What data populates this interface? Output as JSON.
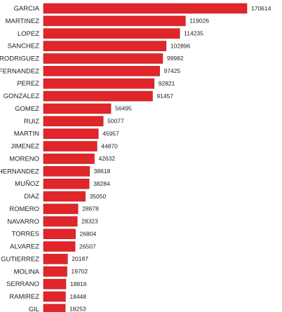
{
  "chart_data": {
    "type": "bar",
    "orientation": "horizontal",
    "title": "",
    "xlabel": "",
    "ylabel": "",
    "grid": false,
    "legend": "none",
    "bar_color": "#e0262a",
    "bar_stroke_color": "#b51b1f",
    "xlim": [
      0,
      170614
    ],
    "categories": [
      "GARCIA",
      "MARTINEZ",
      "LOPEZ",
      "SANCHEZ",
      "RODRIGUEZ",
      "FERNANDEZ",
      "PEREZ",
      "GONZALEZ",
      "GOMEZ",
      "RUIZ",
      "MARTIN",
      "JIMENEZ",
      "MORENO",
      "HERNANDEZ",
      "MUÑOZ",
      "DIAZ",
      "ROMERO",
      "NAVARRO",
      "TORRES",
      "ALVAREZ",
      "GUTIERREZ",
      "MOLINA",
      "SERRANO",
      "RAMIREZ",
      "GIL"
    ],
    "values": [
      170614,
      119026,
      114235,
      102896,
      99982,
      97425,
      92821,
      91457,
      56495,
      50077,
      45957,
      44870,
      42632,
      38618,
      38284,
      35050,
      28878,
      28323,
      26804,
      26507,
      20187,
      19702,
      18816,
      18448,
      18253
    ]
  }
}
